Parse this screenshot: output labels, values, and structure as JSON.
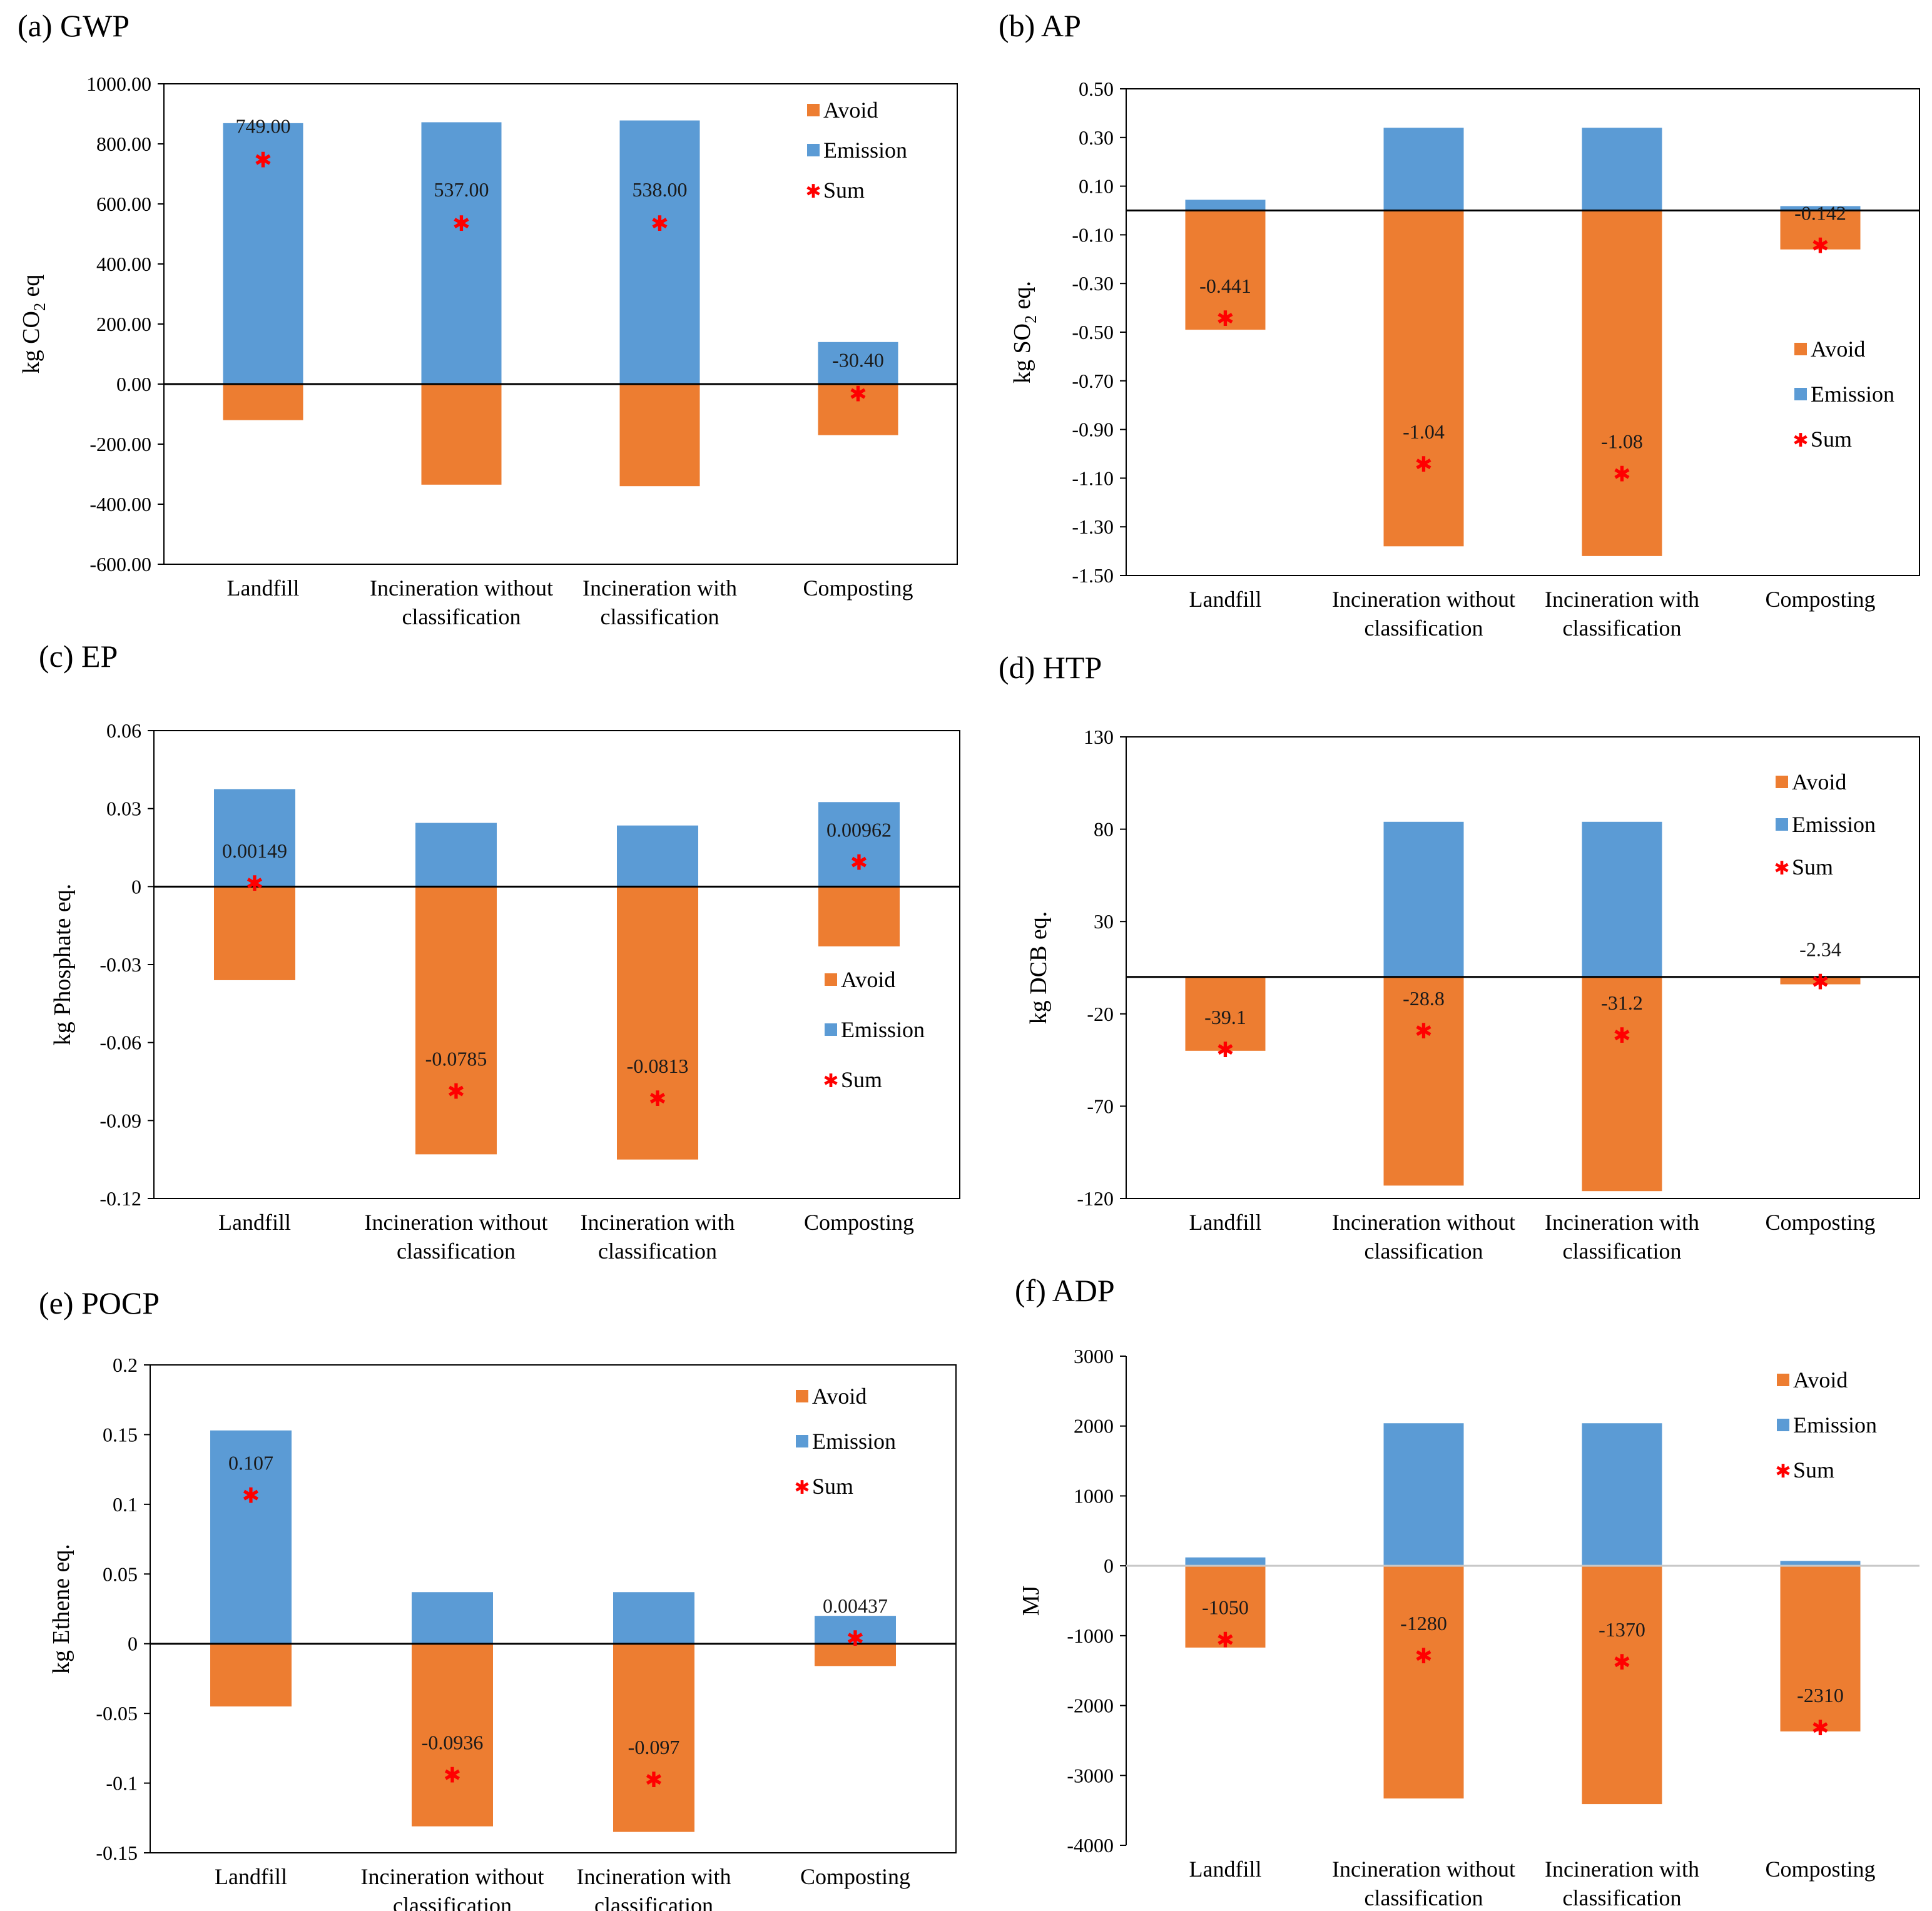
{
  "colors": {
    "avoid": "#ED7D31",
    "emission": "#5B9BD5",
    "sum": "#FF0000",
    "axis": "#000000"
  },
  "legend": {
    "avoid": "Avoid",
    "emission": "Emission",
    "sum": "Sum"
  },
  "chart_data": [
    {
      "type": "bar",
      "title": "(a) GWP",
      "ylabel": "kg CO2 eq",
      "ylabel_main": "kg CO",
      "ylabel_sub": "2",
      "ylabel_tail": " eq",
      "categories": [
        "Landfill",
        "Incineration without classification",
        "Incineration with classification",
        "Composting"
      ],
      "category_lines": [
        [
          "Landfill"
        ],
        [
          "Incineration without",
          "classification"
        ],
        [
          "Incineration with",
          "classification"
        ],
        [
          "Composting"
        ]
      ],
      "ylim": [
        -600,
        1000
      ],
      "yticks": [
        -600,
        -400,
        -200,
        0,
        200,
        400,
        600,
        800,
        1000
      ],
      "ytick_labels": [
        "-600.00",
        "-400.00",
        "-200.00",
        "0.00",
        "200.00",
        "400.00",
        "600.00",
        "800.00",
        "1000.00"
      ],
      "series": [
        {
          "name": "Avoid",
          "values": [
            -120,
            -335,
            -340,
            -170
          ]
        },
        {
          "name": "Emission",
          "values": [
            869,
            872,
            878,
            140
          ]
        },
        {
          "name": "Sum",
          "values": [
            749,
            537,
            538,
            -30.4
          ]
        }
      ],
      "sum_labels": [
        "749.00",
        "537.00",
        "538.00",
        "-30.40"
      ]
    },
    {
      "type": "bar",
      "title": "(b) AP",
      "ylabel": "kg SO2 eq.",
      "ylabel_main": "kg SO",
      "ylabel_sub": "2",
      "ylabel_tail": " eq.",
      "categories": [
        "Landfill",
        "Incineration without classification",
        "Incineration with classification",
        "Composting"
      ],
      "category_lines": [
        [
          "Landfill"
        ],
        [
          "Incineration without",
          "classification"
        ],
        [
          "Incineration with",
          "classification"
        ],
        [
          "Composting"
        ]
      ],
      "ylim": [
        -1.5,
        0.5
      ],
      "yticks": [
        -1.5,
        -1.3,
        -1.1,
        -0.9,
        -0.7,
        -0.5,
        -0.3,
        -0.1,
        0.1,
        0.3,
        0.5
      ],
      "ytick_labels": [
        "-1.50",
        "-1.30",
        "-1.10",
        "-0.90",
        "-0.70",
        "-0.50",
        "-0.30",
        "-0.10",
        "0.10",
        "0.30",
        "0.50"
      ],
      "series": [
        {
          "name": "Avoid",
          "values": [
            -0.49,
            -1.38,
            -1.42,
            -0.16
          ]
        },
        {
          "name": "Emission",
          "values": [
            0.044,
            0.34,
            0.34,
            0.018
          ]
        },
        {
          "name": "Sum",
          "values": [
            -0.441,
            -1.04,
            -1.08,
            -0.142
          ]
        }
      ],
      "sum_labels": [
        "-0.441",
        "-1.04",
        "-1.08",
        "-0.142"
      ]
    },
    {
      "type": "bar",
      "title": "(c) EP",
      "ylabel": "kg Phosphate eq.",
      "categories": [
        "Landfill",
        "Incineration without classification",
        "Incineration with classification",
        "Composting"
      ],
      "category_lines": [
        [
          "Landfill"
        ],
        [
          "Incineration without",
          "classification"
        ],
        [
          "Incineration with",
          "classification"
        ],
        [
          "Composting"
        ]
      ],
      "ylim": [
        -0.12,
        0.06
      ],
      "yticks": [
        -0.12,
        -0.09,
        -0.06,
        -0.03,
        0,
        0.03,
        0.06
      ],
      "ytick_labels": [
        "-0.12",
        "-0.09",
        "-0.06",
        "-0.03",
        "0",
        "0.03",
        "0.06"
      ],
      "series": [
        {
          "name": "Avoid",
          "values": [
            -0.036,
            -0.103,
            -0.105,
            -0.023
          ]
        },
        {
          "name": "Emission",
          "values": [
            0.0375,
            0.0245,
            0.0235,
            0.0325
          ]
        },
        {
          "name": "Sum",
          "values": [
            0.00149,
            -0.0785,
            -0.0813,
            0.00962
          ]
        }
      ],
      "sum_labels": [
        "0.00149",
        "-0.0785",
        "-0.0813",
        "0.00962"
      ]
    },
    {
      "type": "bar",
      "title": "(d) HTP",
      "ylabel": "kg DCB eq.",
      "categories": [
        "Landfill",
        "Incineration without classification",
        "Incineration with classification",
        "Composting"
      ],
      "category_lines": [
        [
          "Landfill"
        ],
        [
          "Incineration without",
          "classification"
        ],
        [
          "Incineration with",
          "classification"
        ],
        [
          "Composting"
        ]
      ],
      "ylim": [
        -120,
        130
      ],
      "yticks": [
        -120,
        -70,
        -20,
        30,
        80,
        130
      ],
      "ytick_labels": [
        "-120",
        "-70",
        "-20",
        "30",
        "80",
        "130"
      ],
      "series": [
        {
          "name": "Avoid",
          "values": [
            -40,
            -113,
            -116,
            -4
          ]
        },
        {
          "name": "Emission",
          "values": [
            0,
            84,
            84,
            0
          ]
        },
        {
          "name": "Sum",
          "values": [
            -39.1,
            -28.8,
            -31.2,
            -2.34
          ]
        }
      ],
      "sum_labels": [
        "-39.1",
        "-28.8",
        "-31.2",
        "-2.34"
      ]
    },
    {
      "type": "bar",
      "title": "(e) POCP",
      "ylabel": "kg Ethene eq.",
      "categories": [
        "Landfill",
        "Incineration without classification",
        "Incineration with classification",
        "Composting"
      ],
      "category_lines": [
        [
          "Landfill"
        ],
        [
          "Incineration without",
          "classification"
        ],
        [
          "Incineration with",
          "classification"
        ],
        [
          "Composting"
        ]
      ],
      "ylim": [
        -0.15,
        0.2
      ],
      "yticks": [
        -0.15,
        -0.1,
        -0.05,
        0,
        0.05,
        0.1,
        0.15,
        0.2
      ],
      "ytick_labels": [
        "-0.15",
        "-0.1",
        "-0.05",
        "0",
        "0.05",
        "0.1",
        "0.15",
        "0.2"
      ],
      "series": [
        {
          "name": "Avoid",
          "values": [
            -0.045,
            -0.131,
            -0.135,
            -0.016
          ]
        },
        {
          "name": "Emission",
          "values": [
            0.153,
            0.037,
            0.037,
            0.02
          ]
        },
        {
          "name": "Sum",
          "values": [
            0.107,
            -0.0936,
            -0.097,
            0.00437
          ]
        }
      ],
      "sum_labels": [
        "0.107",
        "-0.0936",
        "-0.097",
        "0.00437"
      ]
    },
    {
      "type": "bar",
      "title": "(f) ADP",
      "ylabel": "MJ",
      "categories": [
        "Landfill",
        "Incineration without classification",
        "Incineration with classification",
        "Composting"
      ],
      "category_lines": [
        [
          "Landfill"
        ],
        [
          "Incineration without",
          "classification"
        ],
        [
          "Incineration with",
          "classification"
        ],
        [
          "Composting"
        ]
      ],
      "ylim": [
        -4000,
        3000
      ],
      "yticks": [
        -4000,
        -3000,
        -2000,
        -1000,
        0,
        1000,
        2000,
        3000
      ],
      "ytick_labels": [
        "-4000",
        "-3000",
        "-2000",
        "-1000",
        "0",
        "1000",
        "2000",
        "3000"
      ],
      "series": [
        {
          "name": "Avoid",
          "values": [
            -1170,
            -3330,
            -3410,
            -2370
          ]
        },
        {
          "name": "Emission",
          "values": [
            120,
            2040,
            2040,
            70
          ]
        },
        {
          "name": "Sum",
          "values": [
            -1050,
            -1280,
            -1370,
            -2310
          ]
        }
      ],
      "sum_labels": [
        "-1050",
        "-1280",
        "-1370",
        "-2310"
      ]
    }
  ]
}
